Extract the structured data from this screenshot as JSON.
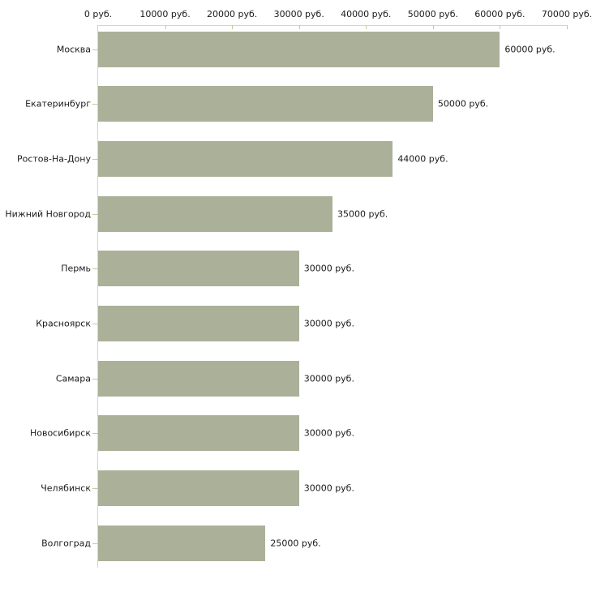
{
  "chart_data": {
    "type": "bar",
    "orientation": "horizontal",
    "title": "",
    "categories": [
      "Москва",
      "Екатеринбург",
      "Ростов-На-Дону",
      "Нижний Новгород",
      "Пермь",
      "Красноярск",
      "Самара",
      "Новосибирск",
      "Челябинск",
      "Волгоград"
    ],
    "values": [
      60000,
      50000,
      44000,
      35000,
      30000,
      30000,
      30000,
      30000,
      30000,
      25000
    ],
    "value_labels": [
      "60000 руб.",
      "50000 руб.",
      "44000 руб.",
      "35000 руб.",
      "30000 руб.",
      "30000 руб.",
      "30000 руб.",
      "30000 руб.",
      "30000 руб.",
      "25000 руб."
    ],
    "x_axis": {
      "position": "top",
      "min": 0,
      "max": 70000,
      "ticks": [
        0,
        10000,
        20000,
        30000,
        40000,
        50000,
        60000,
        70000
      ],
      "tick_labels": [
        "0 руб.",
        "10000 руб.",
        "20000 руб.",
        "30000 руб.",
        "40000 руб.",
        "50000 руб.",
        "60000 руб.",
        "70000 руб."
      ]
    },
    "grid": false,
    "legend": false,
    "colors": {
      "background": "#ffffff",
      "bar": "#abb199",
      "axis_line": "#d4d4d4",
      "tick_mark": "#c6c89c",
      "text": "#1a1a1a"
    }
  }
}
